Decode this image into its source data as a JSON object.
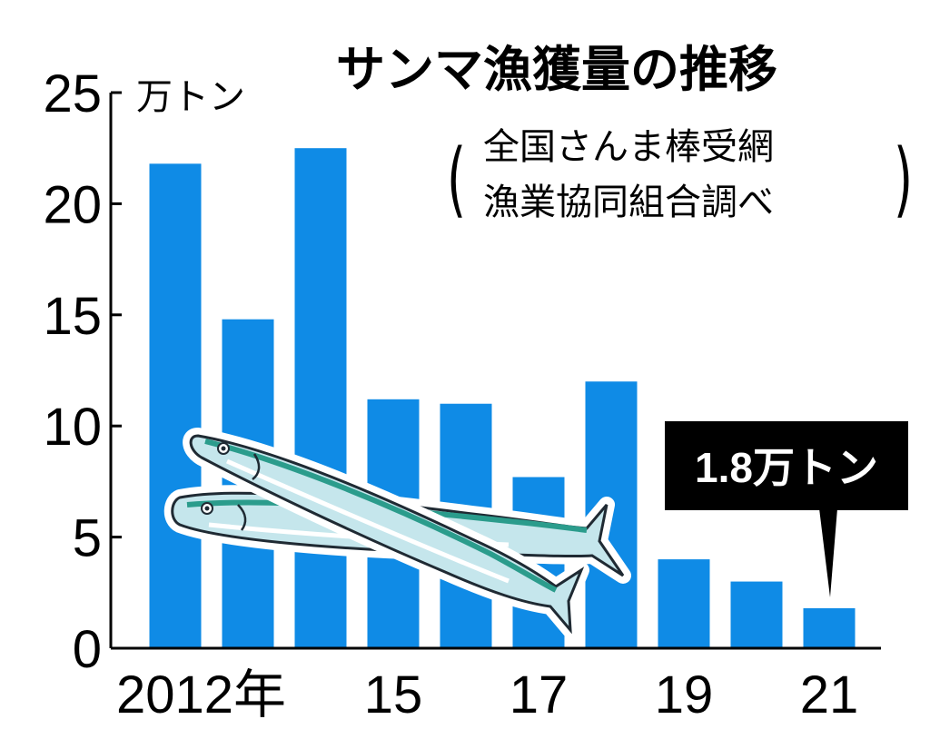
{
  "chart_data": {
    "type": "bar",
    "title": "サンマ漁獲量の推移",
    "source_lines": [
      "全国さんま棒受網",
      "漁業協同組合調べ"
    ],
    "unit": "万トン",
    "categories": [
      "2012",
      "2013",
      "2014",
      "2015",
      "2016",
      "2017",
      "2018",
      "2019",
      "2020",
      "2021"
    ],
    "values": [
      21.8,
      14.8,
      22.5,
      11.2,
      11.0,
      7.7,
      12.0,
      4.0,
      3.0,
      1.8
    ],
    "x_tick_labels": [
      "2012年",
      "15",
      "17",
      "19",
      "21"
    ],
    "x_tick_index": [
      0,
      3,
      5,
      7,
      9
    ],
    "y_ticks": [
      "0",
      "5",
      "10",
      "15",
      "20",
      "25"
    ],
    "ylim": [
      0,
      25
    ],
    "bar_color": "#0f8be6",
    "callout": "1.8万トン",
    "grid": false
  }
}
